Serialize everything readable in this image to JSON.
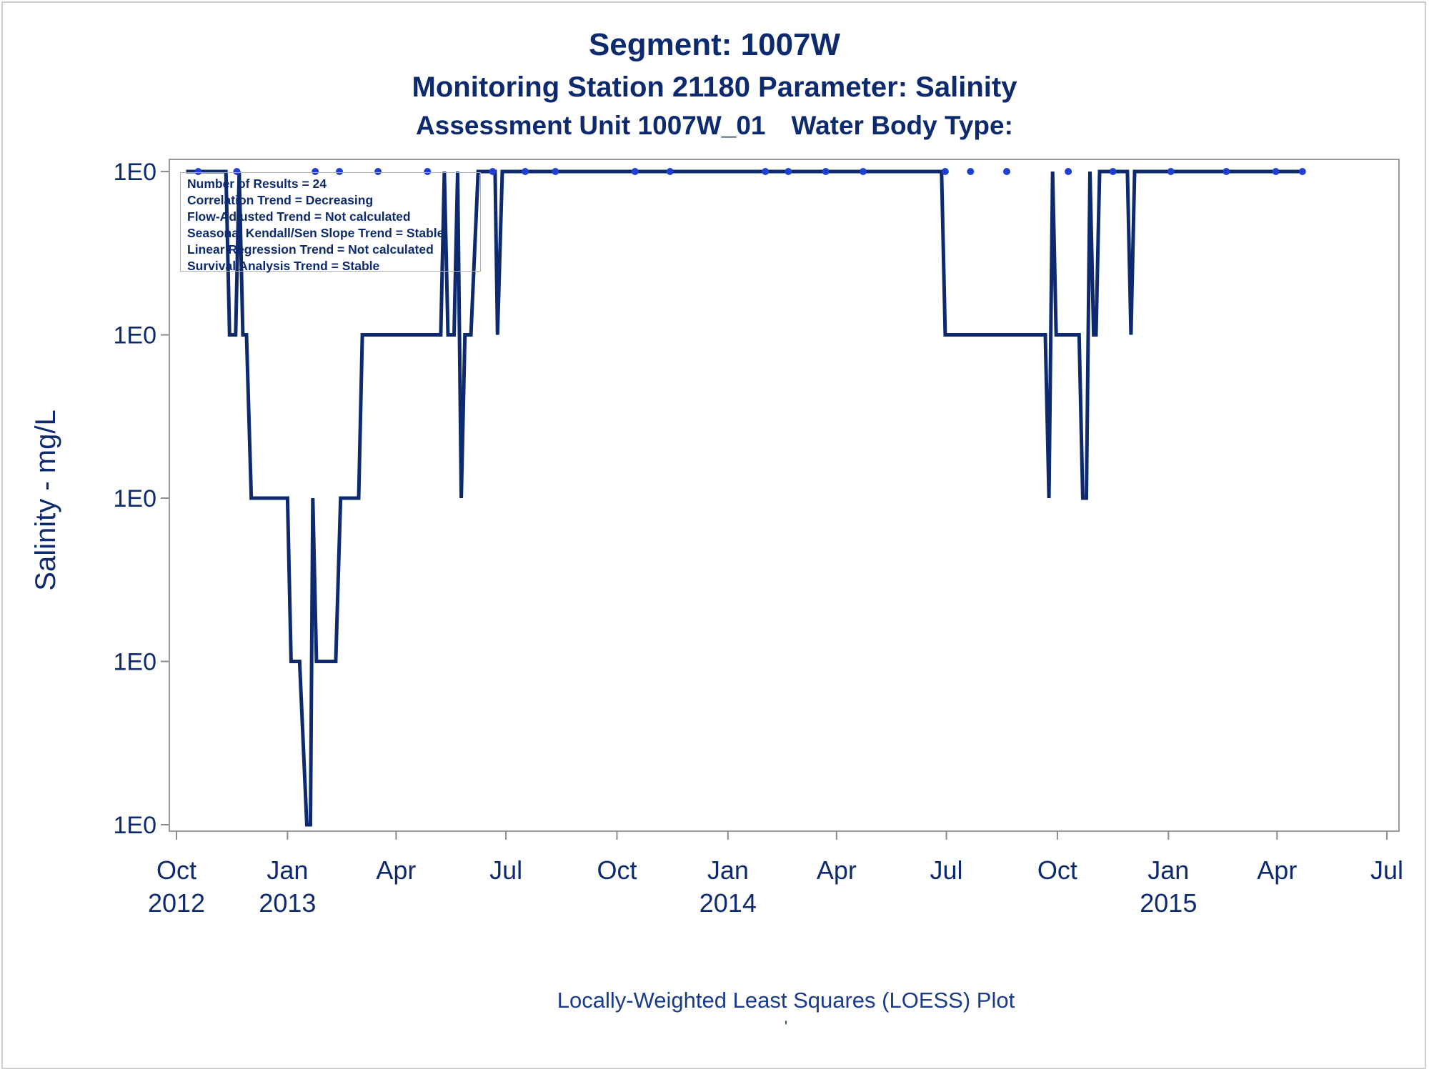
{
  "header": {
    "title": "Segment: 1007W",
    "subtitle": "Monitoring Station 21180 Parameter: Salinity",
    "subtitle2_part1": "Assessment Unit 1007W_01",
    "subtitle2_part2": "Water Body Type:"
  },
  "stats_box": [
    "Number of Results = 24",
    "Correlation Trend = Decreasing",
    "Flow-Adjusted Trend = Not calculated",
    "Seasonal Kendall/Sen Slope Trend = Stable",
    "Linear Regression Trend = Not calculated",
    "Survival Analysis Trend = Stable"
  ],
  "footer": {
    "caption": "Locally-Weighted Least Squares (LOESS) Plot",
    "mark": "'"
  },
  "colors": {
    "line": "#0e2a6e",
    "points": "#1f3fd1",
    "text": "#0e2a6e",
    "axis": "#8c8c8c"
  },
  "chart_data": {
    "type": "line",
    "ylabel": "Salinity - mg/L",
    "xlabel": "",
    "xlim": [
      "2012-10-01",
      "2015-07-01"
    ],
    "y_ticks": [
      "1E0",
      "1E0",
      "1E0",
      "1E0",
      "1E0"
    ],
    "y_levels": [
      5,
      4,
      3,
      2,
      1
    ],
    "x_ticks": [
      {
        "date": "2012-10-01",
        "label": "Oct",
        "year": "2012"
      },
      {
        "date": "2013-01-01",
        "label": "Jan",
        "year": "2013"
      },
      {
        "date": "2013-04-01",
        "label": "Apr",
        "year": ""
      },
      {
        "date": "2013-07-01",
        "label": "Jul",
        "year": ""
      },
      {
        "date": "2013-10-01",
        "label": "Oct",
        "year": ""
      },
      {
        "date": "2014-01-01",
        "label": "Jan",
        "year": "2014"
      },
      {
        "date": "2014-04-01",
        "label": "Apr",
        "year": ""
      },
      {
        "date": "2014-07-01",
        "label": "Jul",
        "year": ""
      },
      {
        "date": "2014-10-01",
        "label": "Oct",
        "year": ""
      },
      {
        "date": "2015-01-01",
        "label": "Jan",
        "year": "2015"
      },
      {
        "date": "2015-04-01",
        "label": "Apr",
        "year": ""
      },
      {
        "date": "2015-07-01",
        "label": "Jul",
        "year": ""
      }
    ],
    "series": [
      {
        "kind": "line",
        "points": [
          [
            "2012-10-09",
            5
          ],
          [
            "2012-11-11",
            5
          ],
          [
            "2012-11-14",
            4
          ],
          [
            "2012-11-19",
            4
          ],
          [
            "2012-11-22",
            5
          ],
          [
            "2012-11-25",
            4
          ],
          [
            "2012-11-28",
            4
          ],
          [
            "2012-12-02",
            3
          ],
          [
            "2012-12-11",
            3
          ],
          [
            "2013-01-01",
            3
          ],
          [
            "2013-01-04",
            2
          ],
          [
            "2013-01-11",
            2
          ],
          [
            "2013-01-17",
            1
          ],
          [
            "2013-01-20",
            1
          ],
          [
            "2013-01-22",
            3
          ],
          [
            "2013-01-25",
            2
          ],
          [
            "2013-02-10",
            2
          ],
          [
            "2013-02-14",
            3
          ],
          [
            "2013-03-01",
            3
          ],
          [
            "2013-03-04",
            4
          ],
          [
            "2013-05-08",
            4
          ],
          [
            "2013-05-11",
            5
          ],
          [
            "2013-05-14",
            4
          ],
          [
            "2013-05-19",
            4
          ],
          [
            "2013-05-22",
            5
          ],
          [
            "2013-05-25",
            3
          ],
          [
            "2013-05-28",
            4
          ],
          [
            "2013-06-02",
            4
          ],
          [
            "2013-06-08",
            5
          ],
          [
            "2013-06-22",
            5
          ],
          [
            "2013-06-24",
            4
          ],
          [
            "2013-06-28",
            5
          ],
          [
            "2014-06-27",
            5
          ],
          [
            "2014-06-30",
            4
          ],
          [
            "2014-09-21",
            4
          ],
          [
            "2014-09-24",
            3
          ],
          [
            "2014-09-27",
            5
          ],
          [
            "2014-09-30",
            4
          ],
          [
            "2014-10-19",
            4
          ],
          [
            "2014-10-22",
            3
          ],
          [
            "2014-10-25",
            3
          ],
          [
            "2014-10-28",
            5
          ],
          [
            "2014-10-31",
            4
          ],
          [
            "2014-11-02",
            4
          ],
          [
            "2014-11-05",
            5
          ],
          [
            "2014-11-28",
            5
          ],
          [
            "2014-12-01",
            4
          ],
          [
            "2014-12-04",
            5
          ],
          [
            "2015-04-22",
            5
          ]
        ]
      },
      {
        "kind": "scatter",
        "points": [
          [
            "2012-10-19",
            5
          ],
          [
            "2012-11-20",
            5
          ],
          [
            "2013-01-24",
            5
          ],
          [
            "2013-02-13",
            5
          ],
          [
            "2013-03-17",
            5
          ],
          [
            "2013-04-27",
            5
          ],
          [
            "2013-06-20",
            5
          ],
          [
            "2013-07-17",
            5
          ],
          [
            "2013-08-11",
            5
          ],
          [
            "2013-10-16",
            5
          ],
          [
            "2013-11-14",
            5
          ],
          [
            "2014-02-01",
            5
          ],
          [
            "2014-02-20",
            5
          ],
          [
            "2014-03-23",
            5
          ],
          [
            "2014-04-23",
            5
          ],
          [
            "2014-06-30",
            5
          ],
          [
            "2014-07-21",
            5
          ],
          [
            "2014-08-20",
            5
          ],
          [
            "2014-10-10",
            5
          ],
          [
            "2014-11-16",
            5
          ],
          [
            "2015-01-03",
            5
          ],
          [
            "2015-02-18",
            5
          ],
          [
            "2015-03-31",
            5
          ],
          [
            "2015-04-22",
            5
          ]
        ]
      }
    ]
  }
}
